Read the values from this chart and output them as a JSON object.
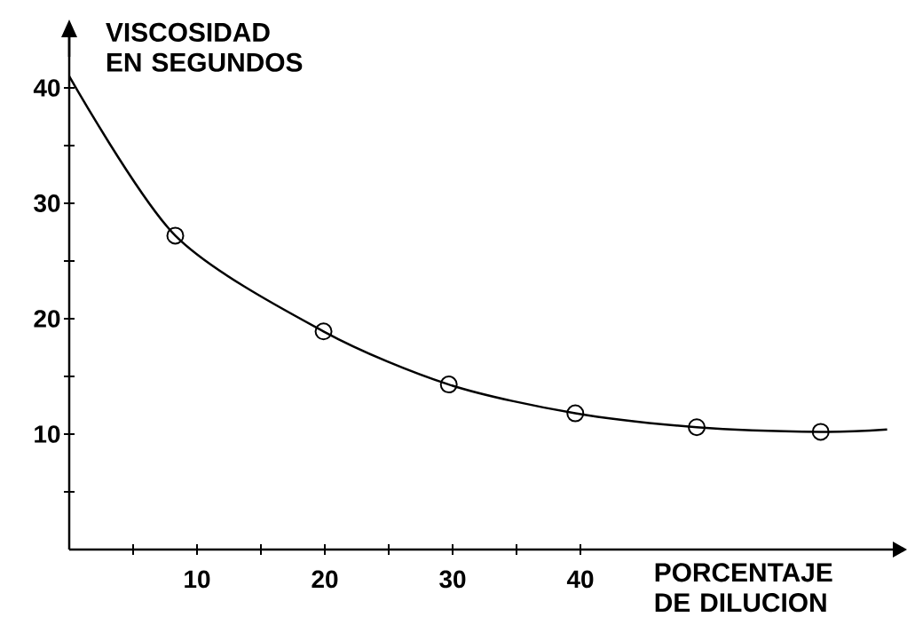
{
  "chart_data": {
    "type": "line",
    "xlabel": "PORCENTAJE DE DILUCION",
    "ylabel": "VISCOSIDAD EN SEGUNDOS",
    "xlim": [
      0,
      65
    ],
    "ylim": [
      0,
      45
    ],
    "xticks": [
      {
        "value": 5,
        "label": null
      },
      10,
      {
        "value": 15,
        "label": null
      },
      20,
      {
        "value": 25,
        "label": null
      },
      30,
      {
        "value": 35,
        "label": null
      },
      40
    ],
    "yticks": [
      {
        "value": 5,
        "label": null
      },
      10,
      {
        "value": 15,
        "label": null
      },
      20,
      {
        "value": 25,
        "label": null
      },
      30,
      {
        "value": 35,
        "label": null
      },
      40
    ],
    "grid": false,
    "series": [
      {
        "color": "#000000",
        "marker": "none",
        "line_style": "solid",
        "x": [
          0,
          8.3,
          19.9,
          29.7,
          39.6,
          49.1,
          58.8,
          64
        ],
        "values": [
          41,
          27.2,
          18.9,
          14.3,
          11.8,
          10.6,
          10.2,
          10.4
        ]
      },
      {
        "type": "scatter",
        "color": "#000000",
        "marker": "circle",
        "x": [
          8.3,
          19.9,
          29.7,
          39.6,
          49.1,
          58.8
        ],
        "values": [
          27.2,
          18.9,
          14.3,
          11.8,
          10.6,
          10.2
        ]
      }
    ]
  }
}
